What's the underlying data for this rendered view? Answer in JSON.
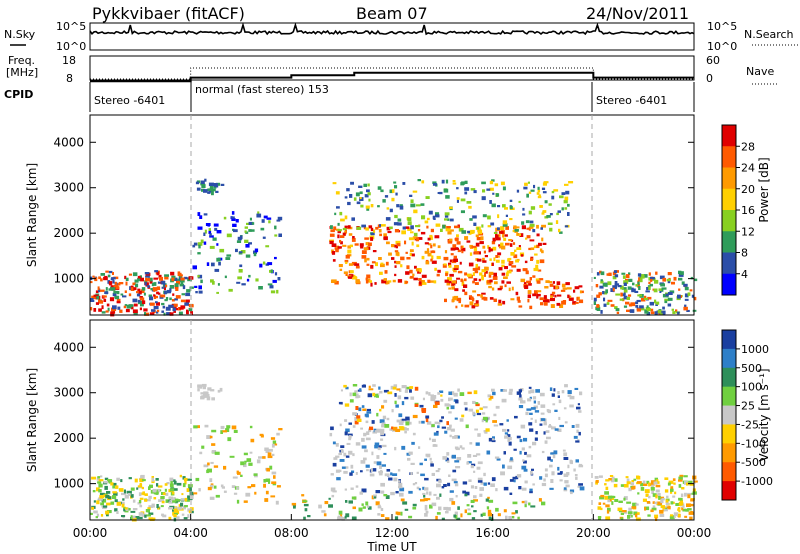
{
  "header": {
    "station": "Pykkvibaer (fitACF)",
    "beam": "Beam 07",
    "date": "24/Nov/2011"
  },
  "chart_data": [
    {
      "type": "line",
      "name": "sky-noise-strip",
      "label_left": "N.Sky",
      "label_right": "N.Search",
      "yticks_left": [
        "10^5",
        "10^0"
      ],
      "yticks_right": [
        "10^5",
        "10^0"
      ]
    },
    {
      "type": "line",
      "name": "freq-nave-strip",
      "label_left_line1": "Freq.",
      "label_left_line2": "[MHz]",
      "label_right": "Nave",
      "yticks_left": [
        "18",
        "8"
      ],
      "yticks_right": [
        "60",
        "0"
      ],
      "freq_steps": [
        [
          0,
          7.5
        ],
        [
          4,
          9
        ],
        [
          8,
          10
        ],
        [
          10.5,
          11
        ],
        [
          20,
          9
        ],
        [
          24,
          9
        ]
      ],
      "nave_steps": [
        [
          0,
          0
        ],
        [
          4,
          30
        ],
        [
          20,
          0
        ],
        [
          24,
          0
        ]
      ]
    },
    {
      "type": "table",
      "name": "cpid-strip",
      "label": "CPID",
      "segments": [
        {
          "start": 0,
          "end": 4,
          "label": "Stereo -6401"
        },
        {
          "start": 4,
          "end": 20,
          "label": "normal (fast stereo) 153"
        },
        {
          "start": 20,
          "end": 24,
          "label": "Stereo -6401"
        }
      ]
    },
    {
      "type": "heatmap",
      "name": "power-panel",
      "ylabel": "Slant Range [km]",
      "yticks": [
        1000,
        2000,
        3000,
        4000
      ],
      "ylim": [
        200,
        4600
      ],
      "xlim": [
        0,
        24
      ],
      "colorbar_label": "Power [dB]",
      "colorbar_ticks": [
        "28",
        "24",
        "20",
        "16",
        "12",
        "8",
        "4"
      ],
      "colorbar_colors": [
        "#e00000",
        "#ff5a00",
        "#ff9a00",
        "#ffd000",
        "#88d020",
        "#2f9c5a",
        "#2b4ea8",
        "#0000ff"
      ]
    },
    {
      "type": "heatmap",
      "name": "velocity-panel",
      "ylabel": "Slant Range [km]",
      "yticks": [
        1000,
        2000,
        3000,
        4000
      ],
      "ylim": [
        200,
        4600
      ],
      "xlim": [
        0,
        24
      ],
      "colorbar_label": "Velocity [m s⁻¹]",
      "colorbar_ticks": [
        "1000",
        "500",
        "100",
        "25",
        "-25",
        "-100",
        "-500",
        "-1000"
      ],
      "colorbar_colors": [
        "#1a3fa0",
        "#2e7fc8",
        "#2e8f5a",
        "#70d040",
        "#c8c8c8",
        "#ffd000",
        "#ff9a00",
        "#ff5a00",
        "#e00000"
      ]
    }
  ],
  "xaxis": {
    "label": "Time UT",
    "ticks": [
      "00:00",
      "04:00",
      "08:00",
      "12:00",
      "16:00",
      "20:00",
      "00:00"
    ]
  }
}
